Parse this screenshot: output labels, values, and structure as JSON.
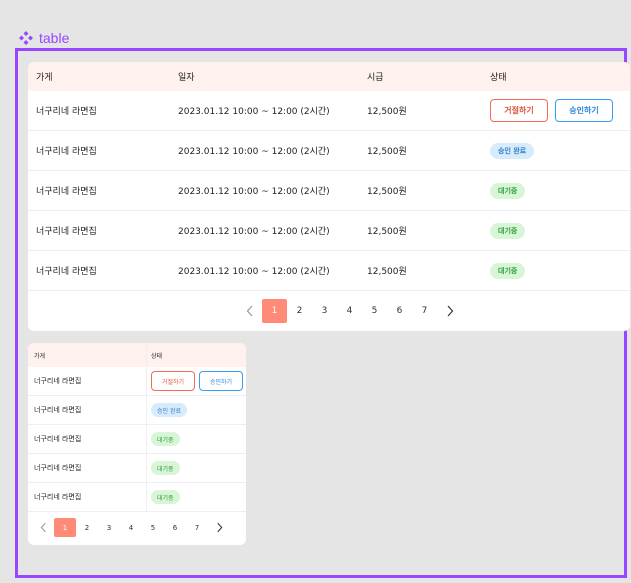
{
  "component": {
    "label": "table",
    "accent_color": "#9747ff",
    "icon": "component-diamond-icon"
  },
  "columns": {
    "store": "가게",
    "date": "일자",
    "wage": "시급",
    "status": "상태"
  },
  "actions": {
    "reject": "거절하기",
    "approve": "승인하기"
  },
  "status_labels": {
    "approved": "승인 완료",
    "waiting": "대기중"
  },
  "rows": [
    {
      "store": "너구리네 라면집",
      "date": "2023.01.12 10:00 ~ 12:00 (2시간)",
      "wage": "12,500원",
      "status": "actions"
    },
    {
      "store": "너구리네 라면집",
      "date": "2023.01.12 10:00 ~ 12:00 (2시간)",
      "wage": "12,500원",
      "status": "승인 완료"
    },
    {
      "store": "너구리네 라면집",
      "date": "2023.01.12 10:00 ~ 12:00 (2시간)",
      "wage": "12,500원",
      "status": "대기중"
    },
    {
      "store": "너구리네 라면집",
      "date": "2023.01.12 10:00 ~ 12:00 (2시간)",
      "wage": "12,500원",
      "status": "대기중"
    },
    {
      "store": "너구리네 라면집",
      "date": "2023.01.12 10:00 ~ 12:00 (2시간)",
      "wage": "12,500원",
      "status": "대기중"
    }
  ],
  "pagination": {
    "pages": [
      "1",
      "2",
      "3",
      "4",
      "5",
      "6",
      "7"
    ],
    "current": "1",
    "prev_icon": "chevron-left-icon",
    "next_icon": "chevron-right-icon"
  },
  "colors": {
    "header_bg": "#fff2ee",
    "active_page": "#ff8a78",
    "reject": "#f26b55",
    "approve": "#3b9cf2",
    "approved_badge_bg": "#d7ebfb",
    "waiting_badge_bg": "#d9f5d7"
  }
}
